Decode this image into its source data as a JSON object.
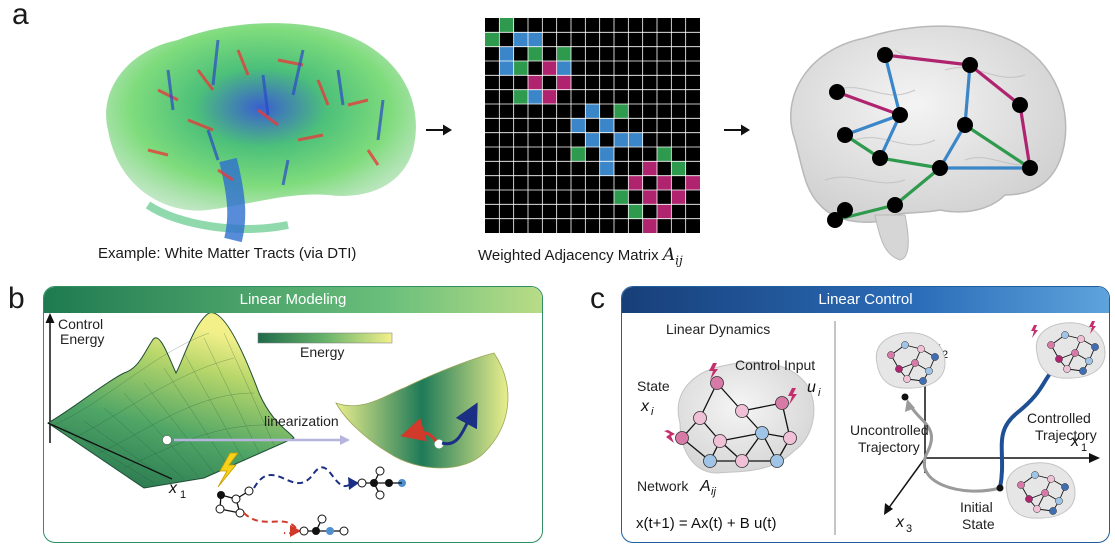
{
  "panels": {
    "a": {
      "letter": "a",
      "tracts_caption": "Example: White Matter Tracts (via DTI)",
      "matrix_caption": "Weighted Adjacency Matrix",
      "matrix_symbol": "A",
      "matrix_symbol_sub": "ij"
    },
    "b": {
      "letter": "b",
      "header": "Linear Modeling",
      "y_label_line1": "Control",
      "y_label_line2": "Energy",
      "colorbar_label": "Energy",
      "linearization_label": "linearization",
      "x_axis": "x",
      "x_axis_sub": "1"
    },
    "c": {
      "letter": "c",
      "header": "Linear Control",
      "linear_dynamics": "Linear Dynamics",
      "state_label": "State",
      "state_symbol": "x",
      "state_sub": "i",
      "control_input_label": "Control Input",
      "control_symbol": "u",
      "control_sub": "i",
      "network_label": "Network",
      "network_symbol": "A",
      "network_sub": "ij",
      "equation": "x(t+1) = Ax(t) + B u(t)",
      "axis_x2": "x",
      "axis_x2_sub": "2",
      "axis_x1": "x",
      "axis_x1_sub": "1",
      "axis_x3": "x",
      "axis_x3_sub": "3",
      "uncontrolled_line1": "Uncontrolled",
      "uncontrolled_line2": "Trajectory",
      "controlled_line1": "Controlled",
      "controlled_line2": "Trajectory",
      "initial_line1": "Initial",
      "initial_line2": "State"
    }
  },
  "colors": {
    "edge_green": "#2e9a4e",
    "edge_blue": "#3a86c8",
    "edge_magenta": "#b0246f",
    "node_pink": "#d87aa8",
    "node_light_blue": "#9fc4e6",
    "node_light_pink": "#efc0d6"
  }
}
